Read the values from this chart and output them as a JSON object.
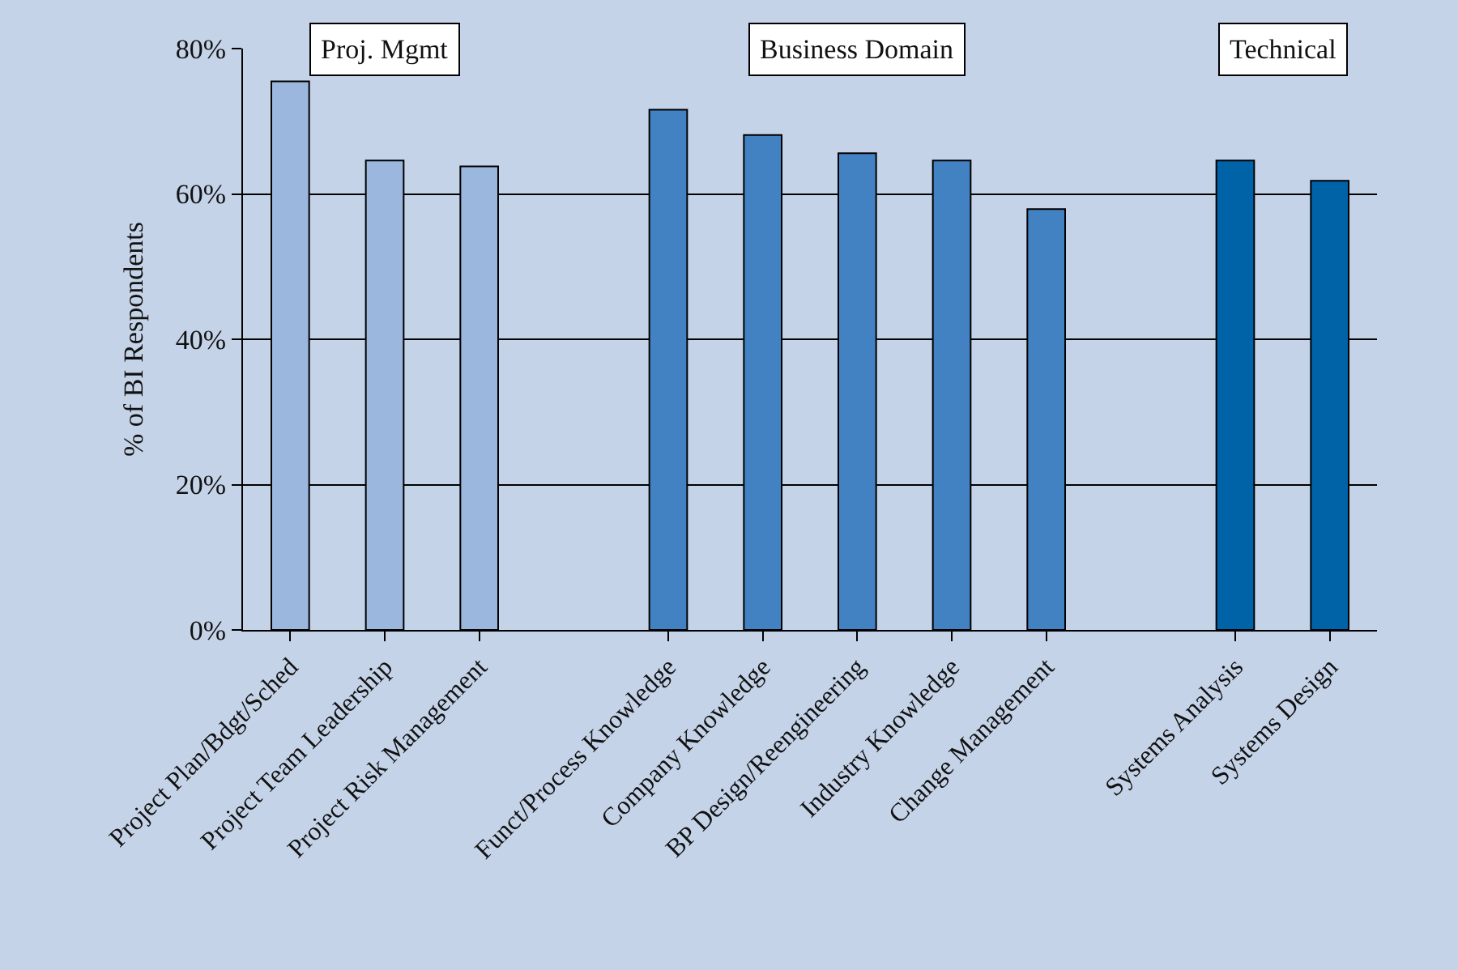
{
  "chart_data": {
    "type": "bar",
    "categories": [
      "Project Plan/Bdgt/Sched",
      "Project Team Leadership",
      "Project Risk Management",
      null,
      "Funct/Process Knowledge",
      "Company Knowledge",
      "BP Design/Reengineering",
      "Industry Knowledge",
      "Change Management",
      null,
      "Systems Analysis",
      "Systems Design"
    ],
    "values": [
      75.5,
      64.6,
      63.8,
      null,
      71.6,
      68.1,
      65.6,
      64.6,
      57.9,
      null,
      64.6,
      61.8
    ],
    "colors": [
      "#9bb7dd",
      "#9bb7dd",
      "#9bb7dd",
      null,
      "#4282c2",
      "#4282c2",
      "#4282c2",
      "#4282c2",
      "#4282c2",
      null,
      "#0063a8",
      "#0063a8"
    ],
    "ylabel": "% of BI Respondents",
    "ylim": [
      0,
      80
    ],
    "yticks": [
      {
        "value": 0,
        "label": "0%"
      },
      {
        "value": 20,
        "label": "20%"
      },
      {
        "value": 40,
        "label": "40%"
      },
      {
        "value": 60,
        "label": "60%"
      },
      {
        "value": 80,
        "label": "80%"
      }
    ],
    "grid": "y",
    "annotations": [
      "Proj. Mgmt",
      "Business Domain",
      "Technical"
    ]
  }
}
